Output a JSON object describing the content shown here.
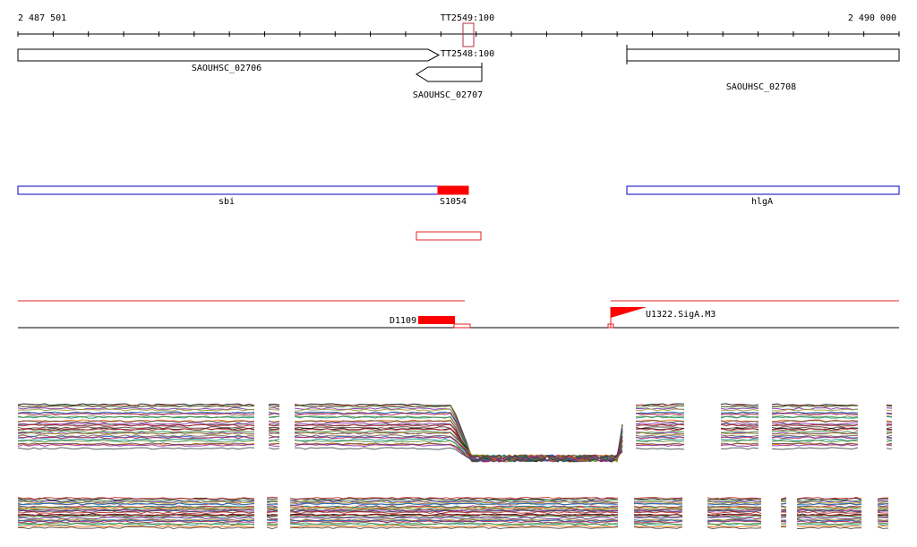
{
  "ruler": {
    "start_label": "2 487 501",
    "end_label": "2 490 000"
  },
  "terminators": {
    "top": "TT2549:100",
    "mid": "TT2548:100"
  },
  "genes": [
    {
      "label": "SAOUHSC_02706",
      "strand": "+"
    },
    {
      "label": "SAOUHSC_02707",
      "strand": "-"
    },
    {
      "label": "SAOUHSC_02708",
      "strand": "+"
    }
  ],
  "features": [
    {
      "label": "sbi"
    },
    {
      "label": "S1054"
    },
    {
      "label": "hlgA"
    }
  ],
  "segments": [
    {
      "label": "D1109"
    },
    {
      "label": "U1322.SigA.M3"
    }
  ],
  "colors": {
    "gene_outline": "#000000",
    "feature_outline": "#0000cc",
    "highlight": "#ff0000",
    "terminator_box": "#b03040",
    "axis": "#000000"
  },
  "expression_palette": [
    "#000000",
    "#c62828",
    "#2e7d32",
    "#6a1b9a",
    "#9e9d24",
    "#795548",
    "#1565c0",
    "#ad1457",
    "#00897b",
    "#558b2f",
    "#ef6c00",
    "#5d4037",
    "#8e24aa",
    "#37474f",
    "#b71c1c",
    "#4e342e"
  ]
}
